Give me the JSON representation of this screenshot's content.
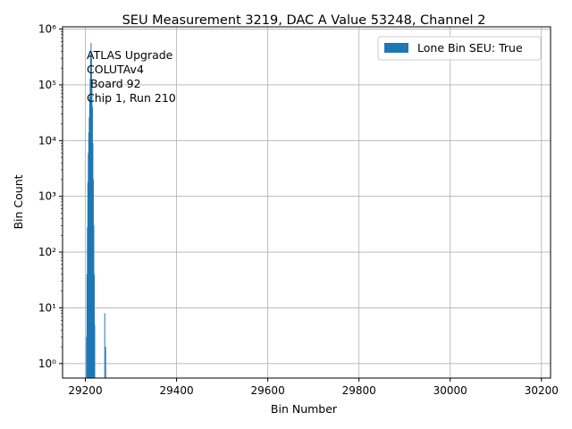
{
  "chart_data": {
    "type": "bar",
    "title": "SEU Measurement 3219, DAC A Value 53248, Channel 2",
    "xlabel": "Bin Number",
    "ylabel": "Bin Count",
    "xlim": [
      29150,
      30220
    ],
    "ylim": [
      0.55,
      1100000
    ],
    "yscale": "log",
    "grid": true,
    "legend_position": "top-right",
    "x_ticks": [
      29200,
      29400,
      29600,
      29800,
      30000,
      30200
    ],
    "y_ticks": [
      {
        "value": 1,
        "label": "10⁰"
      },
      {
        "value": 10,
        "label": "10¹"
      },
      {
        "value": 100,
        "label": "10²"
      },
      {
        "value": 1000,
        "label": "10³"
      },
      {
        "value": 10000,
        "label": "10⁴"
      },
      {
        "value": 100000,
        "label": "10⁵"
      },
      {
        "value": 1000000,
        "label": "10⁶"
      }
    ],
    "annotation_lines": [
      "ATLAS Upgrade",
      "COLUTAv4",
      " Board 92",
      "Chip 1, Run 210"
    ],
    "series": [
      {
        "name": "Lone Bin SEU: True",
        "color": "#1f77b4",
        "bins": [
          {
            "x": 29202,
            "y": 3
          },
          {
            "x": 29203,
            "y": 40
          },
          {
            "x": 29204,
            "y": 280
          },
          {
            "x": 29205,
            "y": 1800
          },
          {
            "x": 29206,
            "y": 6000
          },
          {
            "x": 29207,
            "y": 14000
          },
          {
            "x": 29208,
            "y": 26000
          },
          {
            "x": 29209,
            "y": 60000
          },
          {
            "x": 29210,
            "y": 130000
          },
          {
            "x": 29211,
            "y": 350000
          },
          {
            "x": 29212,
            "y": 560000
          },
          {
            "x": 29213,
            "y": 300000
          },
          {
            "x": 29214,
            "y": 120000
          },
          {
            "x": 29215,
            "y": 40000
          },
          {
            "x": 29216,
            "y": 9000
          },
          {
            "x": 29217,
            "y": 2000
          },
          {
            "x": 29218,
            "y": 300
          },
          {
            "x": 29219,
            "y": 40
          },
          {
            "x": 29220,
            "y": 5
          },
          {
            "x": 29242,
            "y": 8
          },
          {
            "x": 29244,
            "y": 2
          }
        ]
      }
    ]
  }
}
